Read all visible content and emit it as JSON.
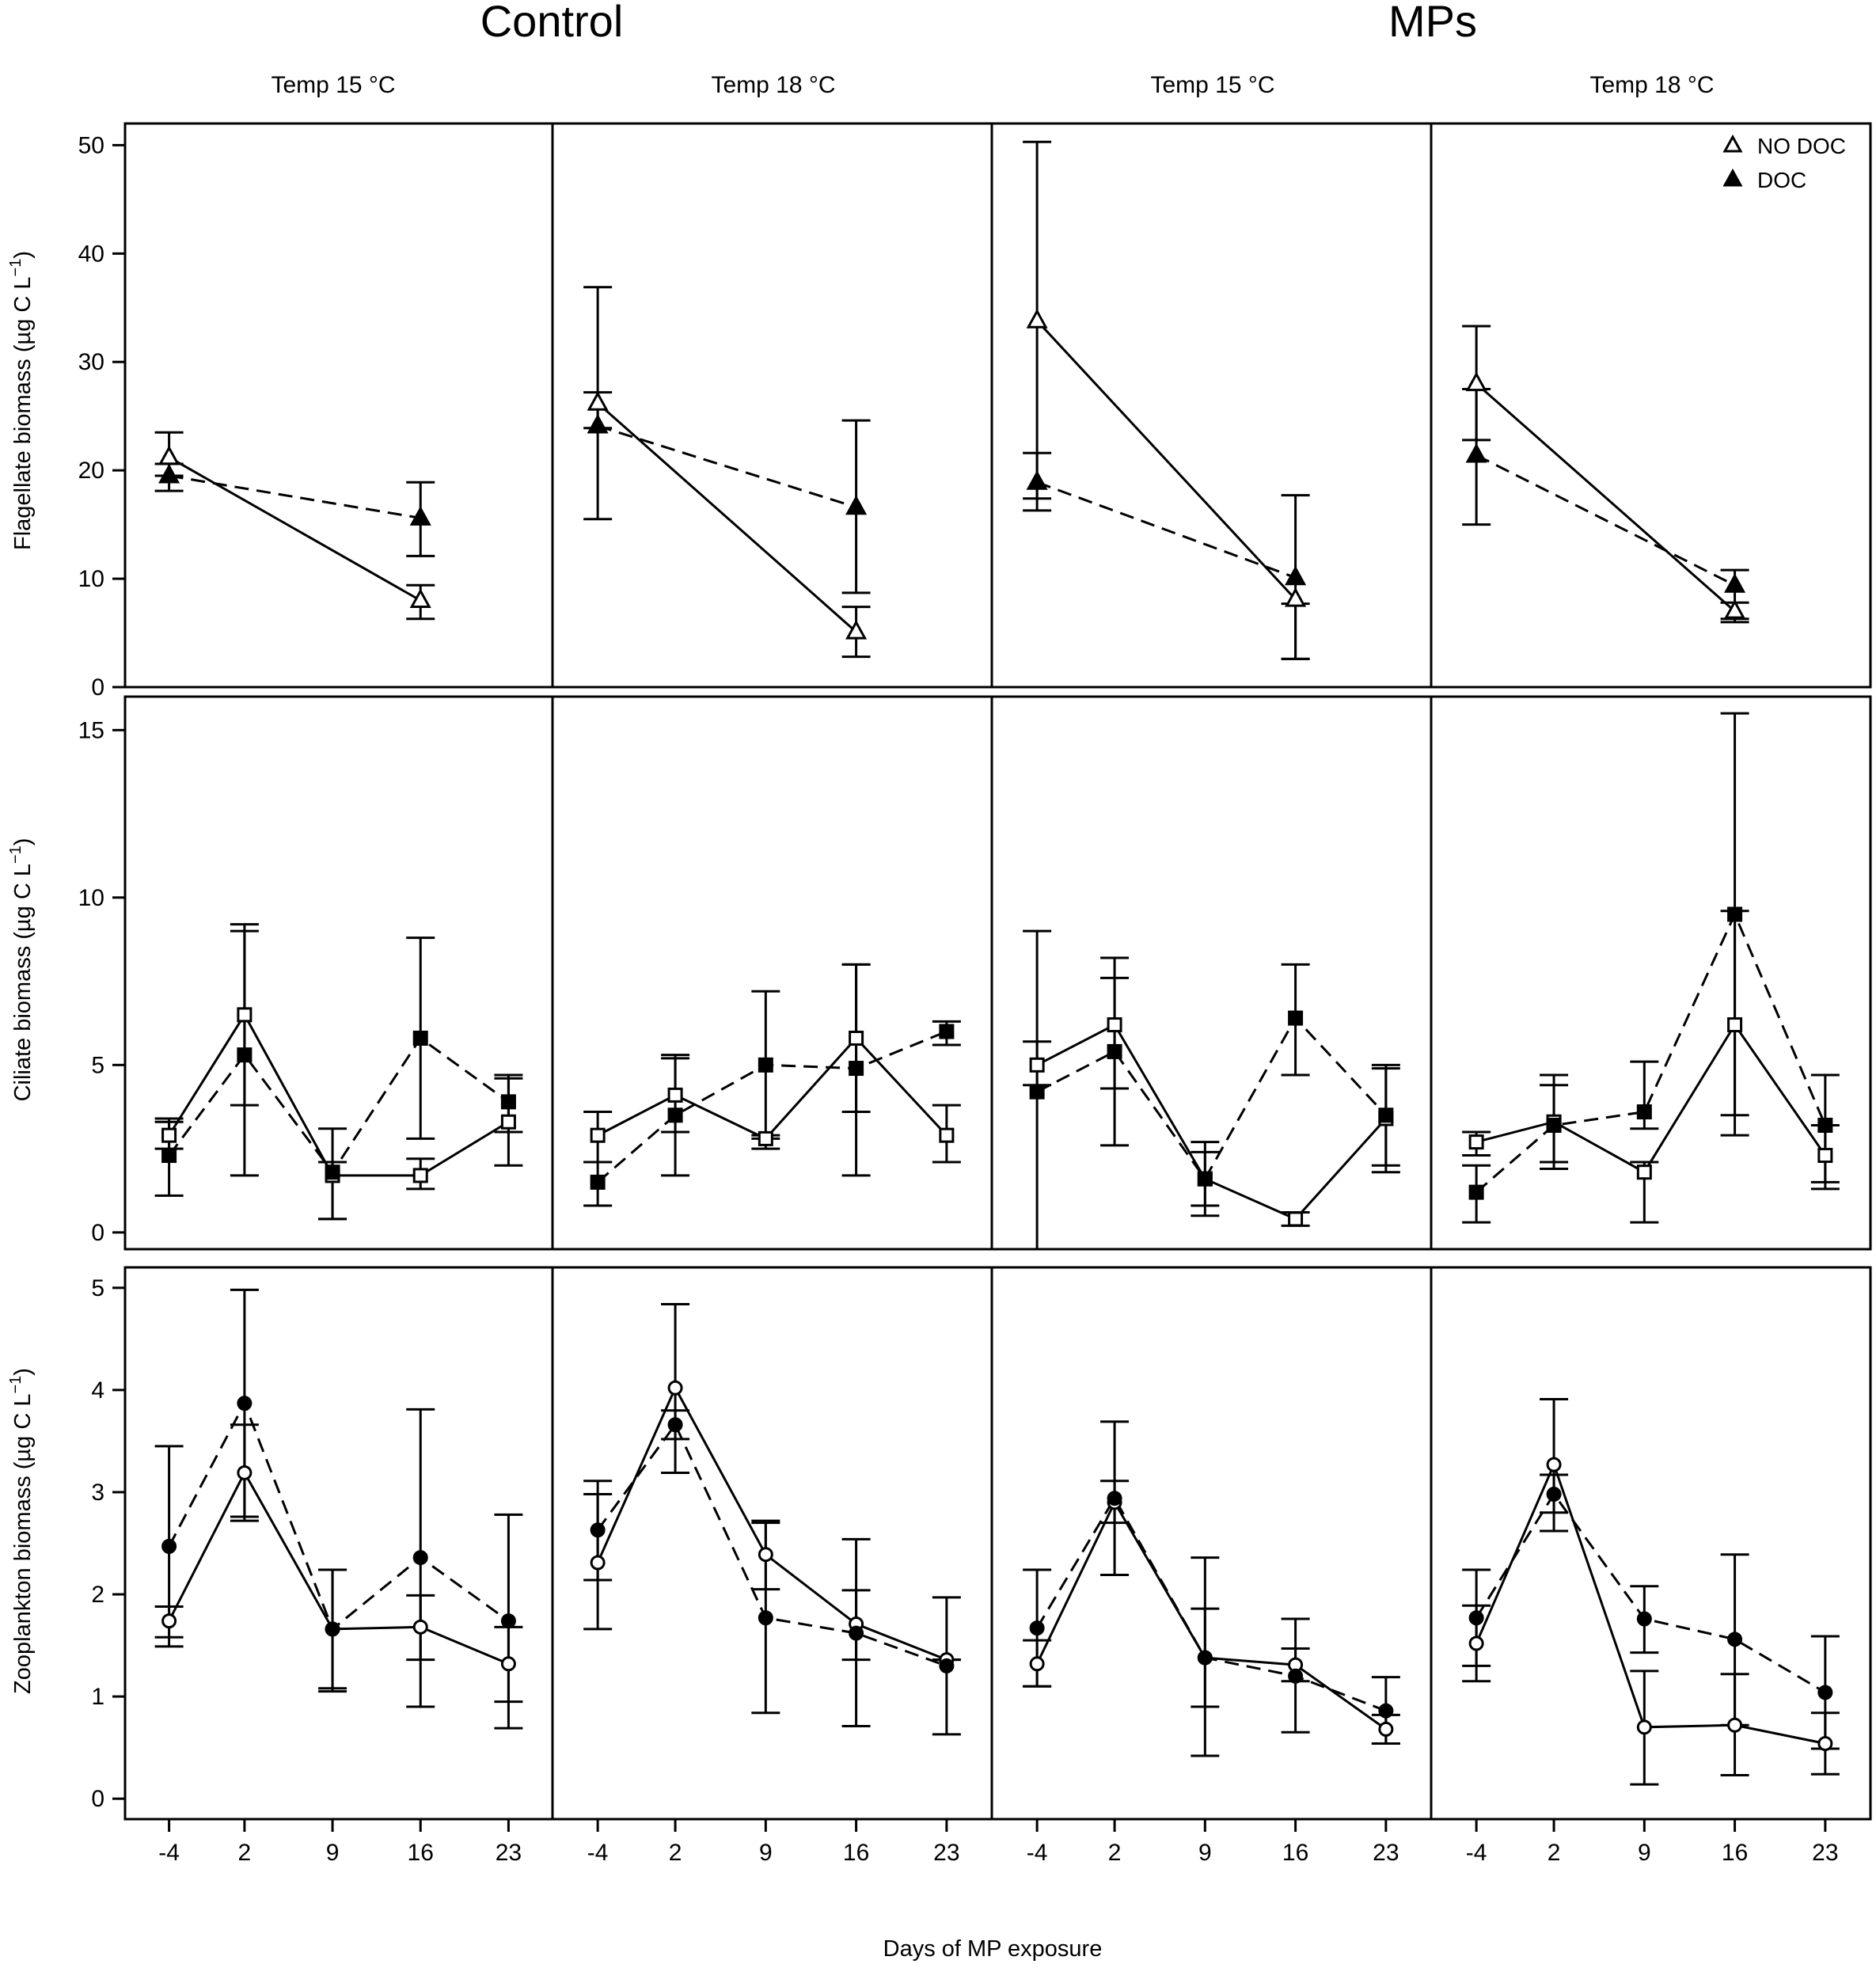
{
  "figure": {
    "group_titles": [
      "Control",
      "MPs"
    ],
    "column_titles": [
      "Temp 15 °C",
      "Temp 18 °C",
      "Temp 15 °C",
      "Temp 18 °C"
    ],
    "xlabel": "Days of MP exposure",
    "x_ticks": [
      "-4",
      "2",
      "9",
      "16",
      "23"
    ],
    "legend": {
      "position": "top-right",
      "entries": [
        {
          "label": "NO DOC",
          "marker": "open",
          "line": "solid"
        },
        {
          "label": "DOC",
          "marker": "filled",
          "line": "dashed"
        }
      ]
    }
  },
  "chart_data": [
    {
      "type": "line",
      "row": "flagellate",
      "ylabel": "Flagellate biomass (µg C L",
      "ylabel_sup": "−1",
      "ylabel_close": ")",
      "ylim": [
        0,
        52
      ],
      "yticks": [
        0,
        10,
        20,
        30,
        40,
        50
      ],
      "marker_shape": "triangle",
      "x": [
        -4,
        16
      ],
      "panels": [
        {
          "column": "Control · Temp 15 °C",
          "series": [
            {
              "name": "NO DOC",
              "values": [
                21.2,
                8.0
              ],
              "err_low": [
                19.5,
                6.3
              ],
              "err_high": [
                23.5,
                9.4
              ]
            },
            {
              "name": "DOC",
              "values": [
                19.5,
                15.6
              ],
              "err_low": [
                18.1,
                12.1
              ],
              "err_high": [
                20.6,
                18.9
              ]
            }
          ]
        },
        {
          "column": "Control · Temp 18 °C",
          "series": [
            {
              "name": "NO DOC",
              "values": [
                26.2,
                5.1
              ],
              "err_low": [
                15.5,
                2.8
              ],
              "err_high": [
                36.9,
                7.4
              ]
            },
            {
              "name": "DOC",
              "values": [
                24.1,
                16.6
              ],
              "err_low": [
                23.9,
                8.7
              ],
              "err_high": [
                27.2,
                24.6
              ]
            }
          ]
        },
        {
          "column": "MPs · Temp 15 °C",
          "series": [
            {
              "name": "NO DOC",
              "values": [
                33.8,
                8.1
              ],
              "err_low": [
                17.4,
                2.6
              ],
              "err_high": [
                50.3,
                7.7
              ]
            },
            {
              "name": "DOC",
              "values": [
                18.9,
                10.1
              ],
              "err_low": [
                16.3,
                2.6
              ],
              "err_high": [
                21.6,
                17.7
              ]
            }
          ]
        },
        {
          "column": "MPs · Temp 18 °C",
          "series": [
            {
              "name": "NO DOC",
              "values": [
                28.0,
                7.0
              ],
              "err_low": [
                22.8,
                6.3
              ],
              "err_high": [
                33.3,
                7.8
              ]
            },
            {
              "name": "DOC",
              "values": [
                21.4,
                9.4
              ],
              "err_low": [
                15.0,
                6.0
              ],
              "err_high": [
                27.5,
                10.8
              ]
            }
          ]
        }
      ]
    },
    {
      "type": "line",
      "row": "ciliate",
      "ylabel": "Ciliate biomass (µg C L",
      "ylabel_sup": "−1",
      "ylabel_close": ")",
      "ylim": [
        -0.5,
        16
      ],
      "yticks": [
        0,
        5,
        10,
        15
      ],
      "marker_shape": "square",
      "x": [
        -4,
        2,
        9,
        16,
        23
      ],
      "panels": [
        {
          "column": "Control · Temp 15 °C",
          "series": [
            {
              "name": "NO DOC",
              "values": [
                2.9,
                6.5,
                1.7,
                1.7,
                3.3
              ],
              "err_low": [
                2.5,
                3.8,
                0.4,
                1.3,
                2.0
              ],
              "err_high": [
                3.3,
                9.2,
                3.1,
                2.2,
                4.7
              ]
            },
            {
              "name": "DOC",
              "values": [
                2.3,
                5.3,
                1.8,
                5.8,
                3.9
              ],
              "err_low": [
                1.1,
                1.7,
                0.4,
                2.8,
                3.0
              ],
              "err_high": [
                3.4,
                9.0,
                2.1,
                8.8,
                4.6
              ]
            }
          ]
        },
        {
          "column": "Control · Temp 18 °C",
          "series": [
            {
              "name": "NO DOC",
              "values": [
                2.9,
                4.1,
                2.8,
                5.8,
                2.9
              ],
              "err_low": [
                2.1,
                3.0,
                2.5,
                3.6,
                2.1
              ],
              "err_high": [
                3.6,
                5.2,
                2.9,
                8.0,
                3.8
              ]
            },
            {
              "name": "DOC",
              "values": [
                1.5,
                3.5,
                5.0,
                4.9,
                6.0
              ],
              "err_low": [
                0.8,
                1.7,
                2.8,
                1.7,
                5.6
              ],
              "err_high": [
                2.1,
                5.3,
                7.2,
                8.0,
                6.3
              ]
            }
          ]
        },
        {
          "column": "MPs · Temp 15 °C",
          "series": [
            {
              "name": "NO DOC",
              "values": [
                5.0,
                6.2,
                1.6,
                0.4,
                3.4
              ],
              "err_low": [
                4.4,
                4.3,
                0.5,
                0.2,
                2.0
              ],
              "err_high": [
                5.7,
                8.2,
                2.7,
                0.6,
                4.9
              ]
            },
            {
              "name": "DOC",
              "values": [
                4.2,
                5.4,
                1.6,
                6.4,
                3.5
              ],
              "err_low": [
                -0.5,
                2.6,
                0.8,
                4.7,
                1.8
              ],
              "err_high": [
                9.0,
                7.6,
                2.4,
                8.0,
                5.0
              ]
            }
          ]
        },
        {
          "column": "MPs · Temp 18 °C",
          "series": [
            {
              "name": "NO DOC",
              "values": [
                2.7,
                3.3,
                1.8,
                6.2,
                2.3
              ],
              "err_low": [
                2.3,
                2.1,
                0.3,
                3.5,
                1.3
              ],
              "err_high": [
                3.0,
                4.7,
                2.1,
                9.6,
                3.2
              ]
            },
            {
              "name": "DOC",
              "values": [
                1.2,
                3.2,
                3.6,
                9.5,
                3.2
              ],
              "err_low": [
                0.3,
                1.9,
                3.1,
                2.9,
                1.5
              ],
              "err_high": [
                2.0,
                4.4,
                5.1,
                15.5,
                4.7
              ]
            }
          ]
        }
      ]
    },
    {
      "type": "line",
      "row": "zooplankton",
      "ylabel": "Zooplankton biomass (µg C L",
      "ylabel_sup": "−1",
      "ylabel_close": ")",
      "ylim": [
        -0.2,
        5.2
      ],
      "yticks": [
        0,
        1,
        2,
        3,
        4,
        5
      ],
      "marker_shape": "circle",
      "x": [
        -4,
        2,
        9,
        16,
        23
      ],
      "panels": [
        {
          "column": "Control · Temp 15 °C",
          "series": [
            {
              "name": "NO DOC",
              "values": [
                1.74,
                3.19,
                1.66,
                1.68,
                1.32
              ],
              "err_low": [
                1.58,
                2.72,
                1.08,
                1.36,
                0.95
              ],
              "err_high": [
                1.88,
                3.66,
                2.24,
                1.99,
                1.68
              ]
            },
            {
              "name": "DOC",
              "values": [
                2.47,
                3.87,
                1.66,
                2.36,
                1.74
              ],
              "err_low": [
                1.49,
                2.76,
                1.05,
                0.9,
                0.69
              ],
              "err_high": [
                3.45,
                4.98,
                2.24,
                3.81,
                2.78
              ]
            }
          ]
        },
        {
          "column": "Control · Temp 18 °C",
          "series": [
            {
              "name": "NO DOC",
              "values": [
                2.31,
                4.02,
                2.39,
                1.71,
                1.36
              ],
              "err_low": [
                2.14,
                3.19,
                2.05,
                1.36,
                1.36
              ],
              "err_high": [
                2.98,
                4.84,
                2.72,
                2.04,
                1.36
              ]
            },
            {
              "name": "DOC",
              "values": [
                2.63,
                3.66,
                1.77,
                1.62,
                1.3
              ],
              "err_low": [
                1.66,
                3.52,
                0.84,
                0.71,
                0.63
              ],
              "err_high": [
                3.11,
                3.8,
                2.7,
                2.54,
                1.97
              ]
            }
          ]
        },
        {
          "column": "MPs · Temp 15 °C",
          "series": [
            {
              "name": "NO DOC",
              "values": [
                1.32,
                2.9,
                1.38,
                1.31,
                0.68
              ],
              "err_low": [
                1.1,
                2.7,
                0.9,
                1.15,
                0.54
              ],
              "err_high": [
                1.55,
                3.11,
                1.86,
                1.47,
                0.82
              ]
            },
            {
              "name": "DOC",
              "values": [
                1.67,
                2.94,
                1.38,
                1.2,
                0.86
              ],
              "err_low": [
                1.1,
                2.19,
                0.42,
                0.65,
                0.54
              ],
              "err_high": [
                2.24,
                3.69,
                2.36,
                1.76,
                1.19
              ]
            }
          ]
        },
        {
          "column": "MPs · Temp 18 °C",
          "series": [
            {
              "name": "NO DOC",
              "values": [
                1.52,
                3.27,
                0.7,
                0.72,
                0.54
              ],
              "err_low": [
                1.15,
                2.62,
                0.14,
                0.23,
                0.24
              ],
              "err_high": [
                1.89,
                3.91,
                1.25,
                1.22,
                0.84
              ]
            },
            {
              "name": "DOC",
              "values": [
                1.77,
                2.98,
                1.76,
                1.56,
                1.04
              ],
              "err_low": [
                1.3,
                2.8,
                1.43,
                0.72,
                0.49
              ],
              "err_high": [
                2.24,
                3.17,
                2.08,
                2.39,
                1.59
              ]
            }
          ]
        }
      ]
    }
  ]
}
